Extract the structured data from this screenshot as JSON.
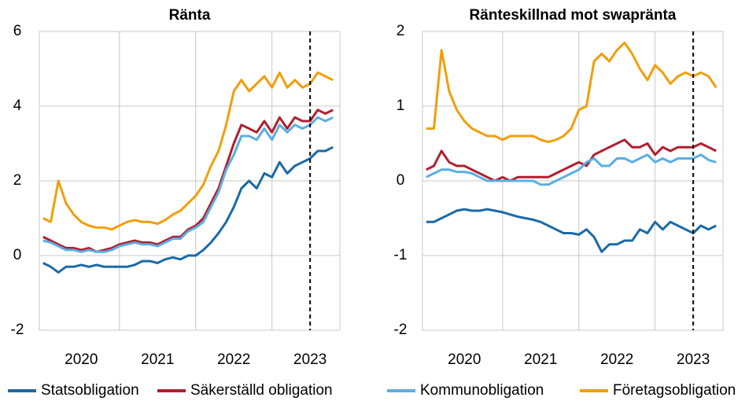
{
  "chart_data": [
    {
      "type": "line",
      "title": "Ränta",
      "x": [
        2019.5,
        2019.6,
        2019.7,
        2019.8,
        2019.9,
        2020.0,
        2020.1,
        2020.2,
        2020.3,
        2020.4,
        2020.5,
        2020.6,
        2020.7,
        2020.8,
        2020.9,
        2021.0,
        2021.1,
        2021.2,
        2021.3,
        2021.4,
        2021.5,
        2021.6,
        2021.7,
        2021.8,
        2021.9,
        2022.0,
        2022.1,
        2022.2,
        2022.3,
        2022.4,
        2022.5,
        2022.6,
        2022.7,
        2022.8,
        2022.9,
        2023.0,
        2023.1,
        2023.2,
        2023.3
      ],
      "xlim": [
        2019.45,
        2023.39
      ],
      "xticks": [
        2020,
        2021,
        2022,
        2023
      ],
      "xgrid": [
        2020.5,
        2021.5,
        2022.5
      ],
      "vline": 2023,
      "ylim": [
        -2,
        6
      ],
      "yticks": [
        -2,
        0,
        2,
        4,
        6
      ],
      "grid": true,
      "legend": [
        0,
        1
      ],
      "series": [
        {
          "name": "Statsobligation",
          "color": "#1a6aa8",
          "values": [
            -0.2,
            -0.3,
            -0.45,
            -0.3,
            -0.3,
            -0.25,
            -0.3,
            -0.25,
            -0.3,
            -0.3,
            -0.3,
            -0.3,
            -0.25,
            -0.15,
            -0.15,
            -0.2,
            -0.1,
            -0.05,
            -0.1,
            0.0,
            0.0,
            0.15,
            0.35,
            0.6,
            0.9,
            1.3,
            1.8,
            2.0,
            1.8,
            2.2,
            2.1,
            2.5,
            2.2,
            2.4,
            2.5,
            2.6,
            2.8,
            2.8,
            2.9
          ]
        },
        {
          "name": "Säkerställd obligation",
          "color": "#b01f2e",
          "values": [
            0.5,
            0.4,
            0.3,
            0.2,
            0.2,
            0.15,
            0.2,
            0.1,
            0.15,
            0.2,
            0.3,
            0.35,
            0.4,
            0.35,
            0.35,
            0.3,
            0.4,
            0.5,
            0.5,
            0.7,
            0.8,
            1.0,
            1.4,
            1.8,
            2.4,
            3.0,
            3.5,
            3.4,
            3.3,
            3.6,
            3.3,
            3.7,
            3.4,
            3.7,
            3.6,
            3.6,
            3.9,
            3.8,
            3.9
          ]
        },
        {
          "name": "Kommunobligation",
          "color": "#5aaee3",
          "values": [
            0.4,
            0.35,
            0.25,
            0.15,
            0.15,
            0.1,
            0.15,
            0.1,
            0.1,
            0.15,
            0.25,
            0.3,
            0.35,
            0.3,
            0.3,
            0.25,
            0.35,
            0.45,
            0.45,
            0.65,
            0.75,
            0.9,
            1.3,
            1.7,
            2.3,
            2.7,
            3.2,
            3.2,
            3.1,
            3.4,
            3.1,
            3.5,
            3.3,
            3.5,
            3.4,
            3.5,
            3.7,
            3.6,
            3.7
          ]
        },
        {
          "name": "Företagsobligation",
          "color": "#f29e0c",
          "values": [
            1.0,
            0.9,
            2.0,
            1.4,
            1.1,
            0.9,
            0.8,
            0.75,
            0.75,
            0.7,
            0.8,
            0.9,
            0.95,
            0.9,
            0.9,
            0.85,
            0.95,
            1.1,
            1.2,
            1.4,
            1.6,
            1.9,
            2.4,
            2.8,
            3.5,
            4.4,
            4.7,
            4.4,
            4.6,
            4.8,
            4.5,
            4.9,
            4.5,
            4.7,
            4.5,
            4.6,
            4.9,
            4.8,
            4.7
          ]
        }
      ]
    },
    {
      "type": "line",
      "title": "Ränteskillnad mot swapränta",
      "x": [
        2019.5,
        2019.6,
        2019.7,
        2019.8,
        2019.9,
        2020.0,
        2020.1,
        2020.2,
        2020.3,
        2020.4,
        2020.5,
        2020.6,
        2020.7,
        2020.8,
        2020.9,
        2021.0,
        2021.1,
        2021.2,
        2021.3,
        2021.4,
        2021.5,
        2021.6,
        2021.7,
        2021.8,
        2021.9,
        2022.0,
        2022.1,
        2022.2,
        2022.3,
        2022.4,
        2022.5,
        2022.6,
        2022.7,
        2022.8,
        2022.9,
        2023.0,
        2023.1,
        2023.2,
        2023.3
      ],
      "xlim": [
        2019.45,
        2023.39
      ],
      "xticks": [
        2020,
        2021,
        2022,
        2023
      ],
      "xgrid": [
        2020.5,
        2021.5,
        2022.5
      ],
      "vline": 2023,
      "ylim": [
        -2,
        2
      ],
      "yticks": [
        -2,
        -1,
        0,
        1,
        2
      ],
      "grid": true,
      "legend": [
        2,
        3
      ],
      "series": [
        {
          "name": "Statsobligation",
          "color": "#1a6aa8",
          "values": [
            -0.55,
            -0.55,
            -0.5,
            -0.45,
            -0.4,
            -0.38,
            -0.4,
            -0.4,
            -0.38,
            -0.4,
            -0.42,
            -0.45,
            -0.48,
            -0.5,
            -0.52,
            -0.55,
            -0.6,
            -0.65,
            -0.7,
            -0.7,
            -0.72,
            -0.65,
            -0.75,
            -0.95,
            -0.85,
            -0.85,
            -0.8,
            -0.8,
            -0.65,
            -0.7,
            -0.55,
            -0.65,
            -0.55,
            -0.6,
            -0.65,
            -0.7,
            -0.6,
            -0.65,
            -0.6
          ]
        },
        {
          "name": "Säkerställd obligation",
          "color": "#b01f2e",
          "values": [
            0.15,
            0.2,
            0.4,
            0.25,
            0.2,
            0.2,
            0.15,
            0.1,
            0.05,
            0.0,
            0.05,
            0.0,
            0.05,
            0.05,
            0.05,
            0.05,
            0.05,
            0.1,
            0.15,
            0.2,
            0.25,
            0.2,
            0.35,
            0.4,
            0.45,
            0.5,
            0.55,
            0.45,
            0.45,
            0.5,
            0.35,
            0.45,
            0.4,
            0.45,
            0.45,
            0.45,
            0.5,
            0.45,
            0.4
          ]
        },
        {
          "name": "Kommunobligation",
          "color": "#5aaee3",
          "values": [
            0.05,
            0.1,
            0.15,
            0.15,
            0.12,
            0.12,
            0.1,
            0.05,
            0.0,
            0.0,
            0.0,
            0.0,
            0.0,
            0.0,
            0.0,
            -0.05,
            -0.05,
            0.0,
            0.05,
            0.1,
            0.15,
            0.25,
            0.3,
            0.2,
            0.2,
            0.3,
            0.3,
            0.25,
            0.3,
            0.35,
            0.25,
            0.3,
            0.25,
            0.3,
            0.3,
            0.3,
            0.35,
            0.28,
            0.25
          ]
        },
        {
          "name": "Företagsobligation",
          "color": "#f29e0c",
          "values": [
            0.7,
            0.7,
            1.75,
            1.2,
            0.95,
            0.8,
            0.7,
            0.65,
            0.6,
            0.6,
            0.55,
            0.6,
            0.6,
            0.6,
            0.6,
            0.55,
            0.52,
            0.55,
            0.6,
            0.7,
            0.95,
            1.0,
            1.6,
            1.7,
            1.6,
            1.75,
            1.85,
            1.7,
            1.5,
            1.35,
            1.55,
            1.45,
            1.3,
            1.4,
            1.45,
            1.4,
            1.45,
            1.4,
            1.25
          ]
        }
      ]
    }
  ]
}
